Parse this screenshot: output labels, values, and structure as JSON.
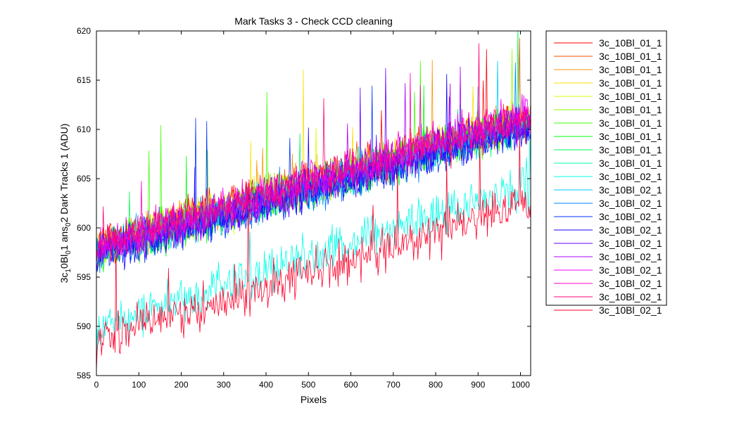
{
  "chart_data": {
    "type": "line",
    "title": "Mark Tasks 3 - Check CCD cleaning",
    "xlabel": "Pixels",
    "ylabel": {
      "parts": [
        "3c",
        "1",
        "0Bl",
        "0",
        "1 ans",
        "0",
        "2 Dark Tracks 1 (ADU)"
      ]
    },
    "xlim": [
      0,
      1024
    ],
    "ylim": [
      585,
      620
    ],
    "xticks": [
      "0",
      "100",
      "200",
      "300",
      "400",
      "500",
      "600",
      "700",
      "800",
      "900",
      "1000"
    ],
    "yticks": [
      "585",
      "590",
      "595",
      "600",
      "605",
      "610",
      "615",
      "620"
    ],
    "grid": false,
    "legend_position": "outside-right",
    "noise_seed": 12345,
    "series": [
      {
        "name": "3c_10Bl_01_1",
        "color": "#ff0000",
        "group": "upper",
        "start": 598.5,
        "end": 611.5
      },
      {
        "name": "3c_10Bl_01_1",
        "color": "#ff4a00",
        "group": "upper",
        "start": 598.3,
        "end": 611.4
      },
      {
        "name": "3c_10Bl_01_1",
        "color": "#ff9500",
        "group": "upper",
        "start": 598.2,
        "end": 611.3
      },
      {
        "name": "3c_10Bl_01_1",
        "color": "#ffdf00",
        "group": "upper",
        "start": 598.0,
        "end": 611.2
      },
      {
        "name": "3c_10Bl_01_1",
        "color": "#d5ff00",
        "group": "upper",
        "start": 597.9,
        "end": 611.1
      },
      {
        "name": "3c_10Bl_01_1",
        "color": "#8aff00",
        "group": "upper",
        "start": 597.8,
        "end": 611.0
      },
      {
        "name": "3c_10Bl_01_1",
        "color": "#40ff00",
        "group": "upper",
        "start": 597.7,
        "end": 610.9
      },
      {
        "name": "3c_10Bl_01_1",
        "color": "#00ff0b",
        "group": "upper",
        "start": 597.6,
        "end": 610.8
      },
      {
        "name": "3c_10Bl_01_1",
        "color": "#00ff55",
        "group": "upper",
        "start": 597.6,
        "end": 610.7
      },
      {
        "name": "3c_10Bl_01_1",
        "color": "#00ffa0",
        "group": "upper",
        "start": 597.5,
        "end": 610.6
      },
      {
        "name": "3c_10Bl_02_1",
        "color": "#00ffea",
        "group": "lower",
        "start": 590.0,
        "end": 604.5
      },
      {
        "name": "3c_10Bl_02_1",
        "color": "#00caff",
        "group": "upper",
        "start": 597.5,
        "end": 610.5
      },
      {
        "name": "3c_10Bl_02_1",
        "color": "#0080ff",
        "group": "upper",
        "start": 597.4,
        "end": 610.4
      },
      {
        "name": "3c_10Bl_02_1",
        "color": "#0035ff",
        "group": "upper",
        "start": 597.2,
        "end": 610.2
      },
      {
        "name": "3c_10Bl_02_1",
        "color": "#1500ff",
        "group": "upper",
        "start": 597.3,
        "end": 610.4
      },
      {
        "name": "3c_10Bl_02_1",
        "color": "#6000ff",
        "group": "upper",
        "start": 597.5,
        "end": 610.8
      },
      {
        "name": "3c_10Bl_02_1",
        "color": "#aa00ff",
        "group": "upper",
        "start": 597.8,
        "end": 611.3
      },
      {
        "name": "3c_10Bl_02_1",
        "color": "#f500ff",
        "group": "upper",
        "start": 598.0,
        "end": 611.6
      },
      {
        "name": "3c_10Bl_02_1",
        "color": "#ff00bf",
        "group": "upper",
        "start": 598.2,
        "end": 611.5
      },
      {
        "name": "3c_10Bl_02_1",
        "color": "#ff0075",
        "group": "upper",
        "start": 598.3,
        "end": 611.2
      },
      {
        "name": "3c_10Bl_02_1",
        "color": "#ff002a",
        "group": "lower",
        "start": 588.5,
        "end": 602.5
      }
    ]
  }
}
